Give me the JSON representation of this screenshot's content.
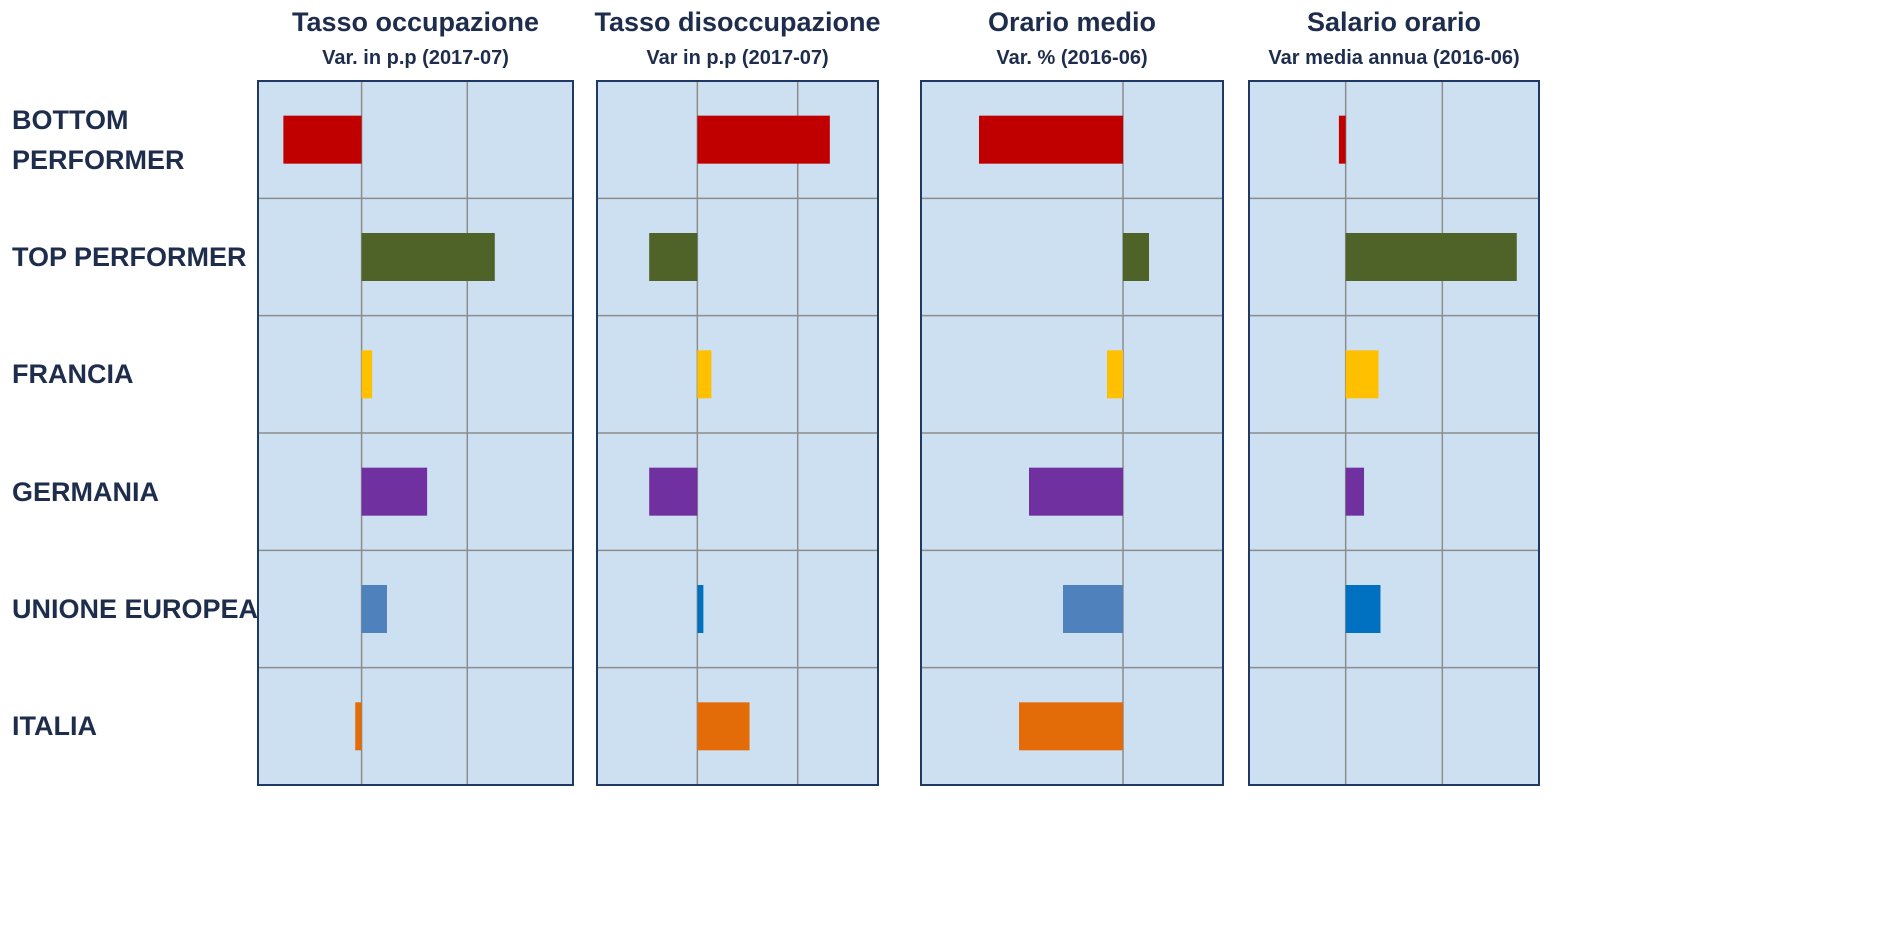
{
  "chart_data": [
    {
      "type": "bar",
      "orientation": "horizontal",
      "title": "Tasso occupazione",
      "subtitle": "Var. in p.p (2017-07)",
      "categories": [
        "BOTTOM PERFORMER",
        "TOP PERFORMER",
        "FRANCIA",
        "GERMANIA",
        "UNIONE EUROPEA",
        "ITALIA"
      ],
      "values": [
        -3.7,
        6.3,
        0.5,
        3.1,
        1.2,
        -0.3
      ],
      "colors": [
        "#c00000",
        "#4f6228",
        "#ffc000",
        "#7030a0",
        "#4f81bd",
        "#e36c09"
      ],
      "xlim": [
        -4.9,
        10
      ],
      "xticks": [
        0,
        5
      ],
      "grid": true
    },
    {
      "type": "bar",
      "orientation": "horizontal",
      "title": "Tasso disoccupazione",
      "subtitle": "Var in p.p (2017-07)",
      "values": [
        6.6,
        -2.4,
        0.7,
        -2.4,
        0.3,
        2.6
      ],
      "colors": [
        "#c00000",
        "#4f6228",
        "#ffc000",
        "#7030a0",
        "#0070c0",
        "#e36c09"
      ],
      "xlim": [
        -5,
        9
      ],
      "xticks": [
        0,
        5
      ],
      "grid": true
    },
    {
      "type": "bar",
      "orientation": "horizontal",
      "title": "Orario medio",
      "subtitle": "Var. % (2016-06)",
      "values": [
        -7.2,
        1.3,
        -0.8,
        -4.7,
        -3,
        -5.2
      ],
      "colors": [
        "#c00000",
        "#4f6228",
        "#ffc000",
        "#7030a0",
        "#4f81bd",
        "#e36c09"
      ],
      "xlim": [
        -10.1,
        5
      ],
      "xticks": [
        0
      ],
      "grid": true
    },
    {
      "type": "bar",
      "orientation": "horizontal",
      "title": "Salario orario",
      "subtitle": "Var media annua (2016-06)",
      "values": [
        -0.07,
        1.77,
        0.34,
        0.19,
        0.36,
        0
      ],
      "colors": [
        "#c00000",
        "#4f6228",
        "#ffc000",
        "#7030a0",
        "#0070c0",
        "#e36c09"
      ],
      "xlim": [
        -1,
        2
      ],
      "xticks": [
        0,
        1
      ],
      "grid": true
    }
  ]
}
